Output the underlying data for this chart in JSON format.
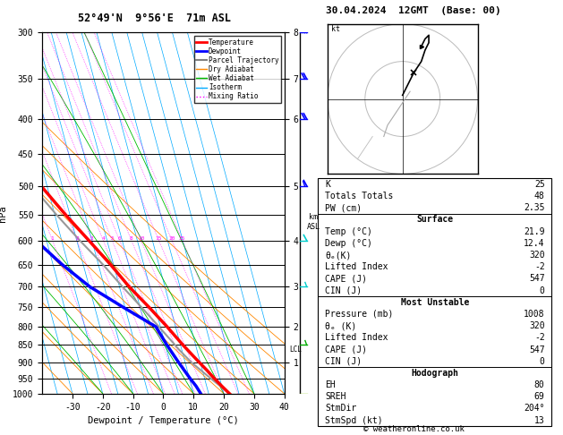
{
  "title_left": "52°49'N  9°56'E  71m ASL",
  "title_right": "30.04.2024  12GMT  (Base: 00)",
  "copyright": "© weatheronline.co.uk",
  "hpa_label": "hPa",
  "xlabel": "Dewpoint / Temperature (°C)",
  "pressure_levels": [
    300,
    350,
    400,
    450,
    500,
    550,
    600,
    650,
    700,
    750,
    800,
    850,
    900,
    950,
    1000
  ],
  "temp_ticks": [
    -30,
    -20,
    -10,
    0,
    10,
    20,
    30,
    40
  ],
  "km_ticks": [
    1,
    2,
    3,
    4,
    5,
    6,
    7,
    8
  ],
  "km_pressures": [
    900,
    800,
    700,
    600,
    500,
    400,
    350,
    300
  ],
  "lcl_pressure": 862,
  "mixing_ratio_vals": [
    1,
    2,
    3,
    4,
    5,
    6,
    8,
    10,
    15,
    20,
    25
  ],
  "bg_color": "#ffffff",
  "legend_entries": [
    "Temperature",
    "Dewpoint",
    "Parcel Trajectory",
    "Dry Adiabat",
    "Wet Adiabat",
    "Isotherm",
    "Mixing Ratio"
  ],
  "legend_colors": [
    "#ff0000",
    "#0000ff",
    "#808080",
    "#ff8800",
    "#00bb00",
    "#00aaff",
    "#ff00ff"
  ],
  "legend_styles": [
    "solid",
    "solid",
    "solid",
    "solid",
    "solid",
    "solid",
    "dotted"
  ],
  "legend_widths": [
    2,
    2,
    1.5,
    1,
    1,
    1,
    1
  ],
  "temp_profile_p": [
    1000,
    975,
    950,
    925,
    900,
    850,
    800,
    750,
    700,
    650,
    600,
    550,
    500,
    450,
    400,
    350,
    300
  ],
  "temp_profile_t": [
    21.9,
    20.0,
    18.2,
    16.5,
    14.6,
    10.8,
    7.2,
    3.0,
    -1.8,
    -6.0,
    -11.0,
    -16.5,
    -22.0,
    -28.5,
    -36.5,
    -46.5,
    -57.0
  ],
  "dewp_profile_p": [
    1000,
    975,
    950,
    925,
    900,
    850,
    800,
    750,
    700,
    650,
    600,
    550,
    500,
    450,
    400,
    350,
    300
  ],
  "dewp_profile_t": [
    12.4,
    11.5,
    10.2,
    9.0,
    7.8,
    5.5,
    3.5,
    -5.5,
    -14.8,
    -22.0,
    -28.5,
    -35.0,
    -40.0,
    -48.0,
    -55.0,
    -62.0,
    -69.0
  ],
  "parcel_p": [
    1000,
    975,
    950,
    925,
    900,
    862,
    850,
    800,
    750,
    700,
    650,
    600,
    550,
    500,
    450,
    400,
    350,
    300
  ],
  "parcel_t": [
    21.9,
    19.5,
    17.0,
    14.5,
    12.0,
    9.0,
    8.2,
    4.5,
    0.5,
    -4.0,
    -8.5,
    -14.0,
    -19.5,
    -25.0,
    -31.5,
    -39.0,
    -48.0,
    -58.0
  ],
  "skew_factor": 32,
  "isotherms": [
    -40,
    -35,
    -30,
    -25,
    -20,
    -15,
    -10,
    -5,
    0,
    5,
    10,
    15,
    20,
    25,
    30,
    35,
    40
  ],
  "dry_adiabat_thetas": [
    -30,
    -20,
    -10,
    0,
    10,
    20,
    30,
    40,
    50,
    60
  ],
  "wet_adiabat_T0s": [
    -20,
    -10,
    0,
    10,
    20,
    30
  ],
  "info_K": 25,
  "info_TT": 48,
  "info_PW": "2.35",
  "info_surf_temp": "21.9",
  "info_surf_dewp": "12.4",
  "info_surf_theta": 320,
  "info_surf_li": -2,
  "info_surf_cape": 547,
  "info_surf_cin": 0,
  "info_mu_pres": 1008,
  "info_mu_theta": 320,
  "info_mu_li": -2,
  "info_mu_cape": 547,
  "info_mu_cin": 0,
  "info_hodo_eh": 80,
  "info_hodo_sreh": 69,
  "info_hodo_stmdir": "204°",
  "info_hodo_stmspd": 13,
  "wind_pressures": [
    300,
    350,
    400,
    500,
    600,
    700,
    850,
    1000
  ],
  "wind_speeds_kt": [
    25,
    20,
    20,
    15,
    10,
    5,
    5,
    3
  ],
  "wind_colors": [
    "#0000ff",
    "#0000ff",
    "#0000ff",
    "#0000ff",
    "#00cccc",
    "#00cccc",
    "#00aa00",
    "#88cc00"
  ]
}
